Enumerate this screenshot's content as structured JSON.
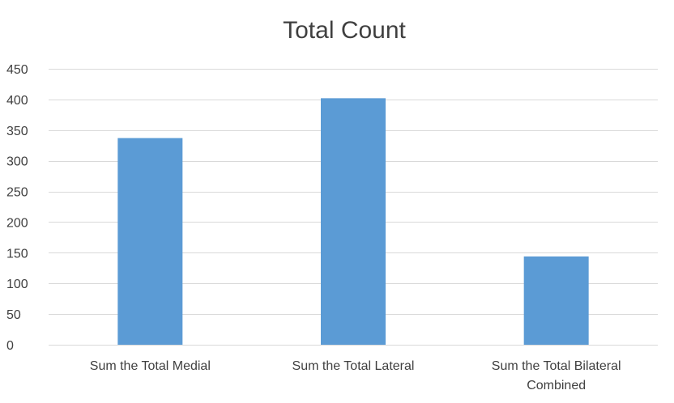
{
  "chart_data": {
    "type": "bar",
    "title": "Total Count",
    "xlabel": "",
    "ylabel": "",
    "categories": [
      [
        "Sum the Total Medial"
      ],
      [
        "Sum the Total Lateral"
      ],
      [
        "Sum the Total Bilateral",
        "Combined"
      ]
    ],
    "values": [
      337,
      402,
      144
    ],
    "ylim": [
      0,
      450
    ],
    "yticks": [
      0,
      50,
      100,
      150,
      200,
      250,
      300,
      350,
      400,
      450
    ],
    "grid": true,
    "legend": "none",
    "colors": {
      "bar": "#5b9bd5",
      "grid": "#d9d9d9",
      "text": "#404040"
    }
  }
}
